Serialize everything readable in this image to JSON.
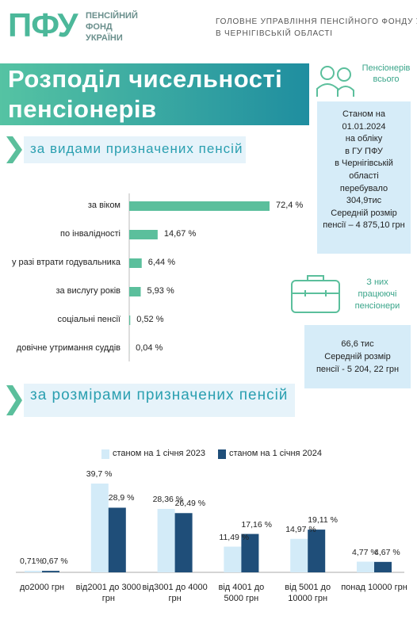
{
  "header": {
    "logo": "ПФУ",
    "logo_lines": [
      "ПЕНСІЙНИЙ",
      "ФОНД",
      "УКРАЇНИ"
    ],
    "org_lines": [
      "ГОЛОВНЕ УПРАВЛІННЯ ПЕНСІЙНОГО ФОНДУ УКРАЇНИ",
      "В ЧЕРНІГІВСЬКІЙ ОБЛАСТІ"
    ]
  },
  "title_lines": [
    "Розподіл чисельності",
    "пенсіонерів"
  ],
  "sidebar": {
    "label1": [
      "Пенсіонерів",
      "всього"
    ],
    "box1": [
      "Станом на",
      "01.01.2024",
      "на обліку",
      "в ГУ ПФУ",
      "в Чернігівській",
      "області",
      "перебувало",
      "304,9тис",
      "Середній розмір",
      "пенсії – 4 875,10 грн"
    ],
    "label2": [
      "З них",
      "працюючі",
      "пенсіонери"
    ],
    "box2": [
      "66,6 тис",
      "Середній розмір",
      "пенсії - 5 204, 22 грн"
    ]
  },
  "chart_data": [
    {
      "type": "hbar",
      "title": "за видами призначених пенсій",
      "color": "#5bbf9c",
      "categories": [
        "за віком",
        "по інвалідності",
        "у разі втрати годувальника",
        "за вислугу років",
        "соціальні пенсії",
        "довічне утримання суддів"
      ],
      "values": [
        72.4,
        14.67,
        6.44,
        5.93,
        0.52,
        0.04
      ],
      "value_labels": [
        "72,4 %",
        "14,67 %",
        "6,44 %",
        "5,93 %",
        "0,52 %",
        "0,04 %"
      ]
    },
    {
      "type": "bar",
      "title": "за розмірами призначених пенсій",
      "categories": [
        "до2000 грн",
        "від2001 до 3000 грн",
        "від3001 до 4000 грн",
        "від 4001 до 5000 грн",
        "від 5001 до 10000 грн",
        "понад 10000 грн"
      ],
      "series": [
        {
          "name": "станом на 1 січня 2023",
          "color": "#d3ebf8",
          "values": [
            0.71,
            39.7,
            28.36,
            11.49,
            14.97,
            4.77
          ],
          "value_labels": [
            "0,71%",
            "39,7 %",
            "28,36 %",
            "11,49 %",
            "14,97 %",
            "4,77 %"
          ]
        },
        {
          "name": "станом на 1 січня 2024",
          "color": "#1f4e79",
          "values": [
            0.67,
            28.9,
            26.49,
            17.16,
            19.11,
            4.67
          ],
          "value_labels": [
            "0,67 %",
            "28,9 %",
            "26,49 %",
            "17,16 %",
            "19,11 %",
            "4,67 %"
          ]
        }
      ]
    }
  ]
}
